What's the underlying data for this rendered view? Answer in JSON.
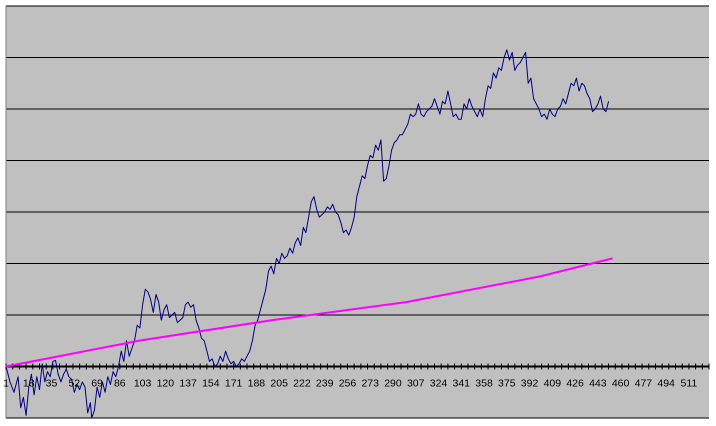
{
  "chart_data": {
    "type": "line",
    "title": "",
    "xlabel": "",
    "ylabel": "",
    "x_tick_labels": [
      "1",
      "18",
      "35",
      "52",
      "69",
      "86",
      "103",
      "120",
      "137",
      "154",
      "171",
      "188",
      "205",
      "222",
      "239",
      "256",
      "273",
      "290",
      "307",
      "324",
      "341",
      "358",
      "375",
      "392",
      "409",
      "426",
      "443",
      "460",
      "477",
      "494",
      "511"
    ],
    "xlim": [
      1,
      526
    ],
    "ylim": [
      -1,
      7
    ],
    "y_gridlines": [
      -1,
      0,
      1,
      2,
      3,
      4,
      5,
      6,
      7
    ],
    "y_tick_labels_visible": false,
    "grid": true,
    "legend": "none",
    "colors": {
      "plot_background": "#c0c0c0",
      "gridline": "#000000",
      "series_price": "#000080",
      "series_trend": "#ff00ff"
    },
    "series": [
      {
        "key": "price",
        "color": "#000080",
        "points": [
          [
            1,
            0.0
          ],
          [
            4,
            -0.3
          ],
          [
            7,
            -0.5
          ],
          [
            10,
            -0.2
          ],
          [
            12,
            -0.8
          ],
          [
            14,
            -0.6
          ],
          [
            16,
            -0.95
          ],
          [
            18,
            -0.4
          ],
          [
            20,
            -0.15
          ],
          [
            22,
            -0.55
          ],
          [
            24,
            -0.2
          ],
          [
            26,
            -0.45
          ],
          [
            28,
            0.05
          ],
          [
            30,
            -0.3
          ],
          [
            32,
            -0.1
          ],
          [
            34,
            -0.2
          ],
          [
            36,
            0.1
          ],
          [
            38,
            0.12
          ],
          [
            40,
            -0.15
          ],
          [
            42,
            -0.3
          ],
          [
            44,
            -0.15
          ],
          [
            46,
            -0.05
          ],
          [
            48,
            -0.2
          ],
          [
            50,
            -0.25
          ],
          [
            52,
            -0.5
          ],
          [
            54,
            -0.35
          ],
          [
            56,
            -0.45
          ],
          [
            58,
            -0.3
          ],
          [
            60,
            -0.4
          ],
          [
            62,
            -0.9
          ],
          [
            64,
            -0.7
          ],
          [
            65,
            -1.0
          ],
          [
            67,
            -0.85
          ],
          [
            69,
            -0.4
          ],
          [
            71,
            -0.6
          ],
          [
            73,
            -0.3
          ],
          [
            75,
            -0.5
          ],
          [
            77,
            -0.2
          ],
          [
            79,
            -0.35
          ],
          [
            81,
            -0.1
          ],
          [
            83,
            -0.2
          ],
          [
            85,
            0.0
          ],
          [
            87,
            0.3
          ],
          [
            89,
            0.1
          ],
          [
            91,
            0.5
          ],
          [
            93,
            0.2
          ],
          [
            95,
            0.35
          ],
          [
            97,
            0.5
          ],
          [
            99,
            0.8
          ],
          [
            101,
            0.75
          ],
          [
            103,
            1.2
          ],
          [
            105,
            1.5
          ],
          [
            107,
            1.45
          ],
          [
            109,
            1.3
          ],
          [
            111,
            1.05
          ],
          [
            113,
            1.4
          ],
          [
            115,
            1.25
          ],
          [
            117,
            0.9
          ],
          [
            119,
            1.1
          ],
          [
            121,
            1.2
          ],
          [
            123,
            0.95
          ],
          [
            125,
            1.0
          ],
          [
            127,
            1.05
          ],
          [
            129,
            0.85
          ],
          [
            131,
            0.9
          ],
          [
            133,
            0.95
          ],
          [
            135,
            1.2
          ],
          [
            137,
            1.25
          ],
          [
            139,
            1.15
          ],
          [
            141,
            1.2
          ],
          [
            143,
            0.9
          ],
          [
            145,
            0.75
          ],
          [
            147,
            0.55
          ],
          [
            149,
            0.5
          ],
          [
            151,
            0.3
          ],
          [
            153,
            0.1
          ],
          [
            155,
            0.15
          ],
          [
            157,
            0.0
          ],
          [
            159,
            0.05
          ],
          [
            161,
            0.2
          ],
          [
            163,
            0.1
          ],
          [
            165,
            0.3
          ],
          [
            167,
            0.15
          ],
          [
            169,
            0.05
          ],
          [
            171,
            0.1
          ],
          [
            173,
            0.0
          ],
          [
            175,
            0.05
          ],
          [
            177,
            0.15
          ],
          [
            179,
            0.1
          ],
          [
            181,
            0.2
          ],
          [
            183,
            0.3
          ],
          [
            185,
            0.5
          ],
          [
            187,
            0.8
          ],
          [
            189,
            0.9
          ],
          [
            191,
            1.1
          ],
          [
            193,
            1.3
          ],
          [
            195,
            1.5
          ],
          [
            197,
            1.85
          ],
          [
            199,
            1.95
          ],
          [
            201,
            1.8
          ],
          [
            203,
            2.1
          ],
          [
            205,
            2.0
          ],
          [
            207,
            2.2
          ],
          [
            209,
            2.1
          ],
          [
            211,
            2.15
          ],
          [
            213,
            2.3
          ],
          [
            215,
            2.2
          ],
          [
            217,
            2.4
          ],
          [
            219,
            2.5
          ],
          [
            221,
            2.35
          ],
          [
            223,
            2.7
          ],
          [
            225,
            2.6
          ],
          [
            227,
            2.9
          ],
          [
            229,
            3.2
          ],
          [
            231,
            3.3
          ],
          [
            233,
            3.05
          ],
          [
            235,
            2.9
          ],
          [
            237,
            2.95
          ],
          [
            239,
            3.0
          ],
          [
            241,
            3.1
          ],
          [
            243,
            3.05
          ],
          [
            245,
            3.15
          ],
          [
            247,
            3.0
          ],
          [
            249,
            2.95
          ],
          [
            251,
            2.8
          ],
          [
            253,
            2.6
          ],
          [
            255,
            2.65
          ],
          [
            257,
            2.55
          ],
          [
            259,
            2.7
          ],
          [
            261,
            2.9
          ],
          [
            263,
            3.3
          ],
          [
            265,
            3.5
          ],
          [
            267,
            3.7
          ],
          [
            269,
            3.65
          ],
          [
            271,
            3.9
          ],
          [
            273,
            4.1
          ],
          [
            275,
            4.05
          ],
          [
            277,
            4.3
          ],
          [
            279,
            4.2
          ],
          [
            281,
            4.4
          ],
          [
            283,
            3.6
          ],
          [
            285,
            3.65
          ],
          [
            287,
            3.9
          ],
          [
            289,
            4.2
          ],
          [
            291,
            4.35
          ],
          [
            293,
            4.4
          ],
          [
            295,
            4.5
          ],
          [
            297,
            4.5
          ],
          [
            299,
            4.6
          ],
          [
            301,
            4.7
          ],
          [
            303,
            4.9
          ],
          [
            305,
            4.85
          ],
          [
            307,
            4.9
          ],
          [
            309,
            5.1
          ],
          [
            311,
            4.9
          ],
          [
            313,
            4.85
          ],
          [
            315,
            4.95
          ],
          [
            317,
            5.0
          ],
          [
            319,
            5.05
          ],
          [
            321,
            5.2
          ],
          [
            323,
            5.05
          ],
          [
            325,
            4.9
          ],
          [
            327,
            5.15
          ],
          [
            329,
            5.1
          ],
          [
            331,
            5.35
          ],
          [
            333,
            5.1
          ],
          [
            335,
            4.85
          ],
          [
            337,
            4.9
          ],
          [
            339,
            4.8
          ],
          [
            341,
            4.8
          ],
          [
            343,
            5.1
          ],
          [
            345,
            5.0
          ],
          [
            347,
            5.2
          ],
          [
            349,
            5.05
          ],
          [
            351,
            4.95
          ],
          [
            353,
            4.85
          ],
          [
            355,
            5.0
          ],
          [
            357,
            4.85
          ],
          [
            359,
            5.2
          ],
          [
            361,
            5.45
          ],
          [
            363,
            5.4
          ],
          [
            365,
            5.7
          ],
          [
            367,
            5.6
          ],
          [
            369,
            5.8
          ],
          [
            371,
            5.75
          ],
          [
            373,
            6.0
          ],
          [
            375,
            6.15
          ],
          [
            377,
            5.95
          ],
          [
            379,
            6.1
          ],
          [
            381,
            5.75
          ],
          [
            383,
            5.85
          ],
          [
            385,
            5.9
          ],
          [
            387,
            6.0
          ],
          [
            389,
            6.1
          ],
          [
            391,
            5.5
          ],
          [
            393,
            5.6
          ],
          [
            395,
            5.2
          ],
          [
            397,
            5.1
          ],
          [
            399,
            5.0
          ],
          [
            401,
            4.85
          ],
          [
            403,
            4.9
          ],
          [
            405,
            4.8
          ],
          [
            407,
            5.0
          ],
          [
            409,
            4.9
          ],
          [
            411,
            4.85
          ],
          [
            413,
            5.0
          ],
          [
            415,
            5.05
          ],
          [
            417,
            5.2
          ],
          [
            419,
            5.1
          ],
          [
            421,
            5.3
          ],
          [
            423,
            5.5
          ],
          [
            425,
            5.45
          ],
          [
            427,
            5.6
          ],
          [
            429,
            5.35
          ],
          [
            431,
            5.5
          ],
          [
            433,
            5.45
          ],
          [
            435,
            5.3
          ],
          [
            437,
            5.2
          ],
          [
            439,
            4.95
          ],
          [
            441,
            5.0
          ],
          [
            443,
            5.1
          ],
          [
            445,
            5.25
          ],
          [
            447,
            5.0
          ],
          [
            449,
            4.95
          ],
          [
            451,
            5.15
          ]
        ]
      },
      {
        "key": "trend",
        "color": "#ff00ff",
        "points": [
          [
            1,
            0.0
          ],
          [
            100,
            0.5
          ],
          [
            200,
            0.9
          ],
          [
            300,
            1.25
          ],
          [
            400,
            1.75
          ],
          [
            454,
            2.1
          ]
        ]
      }
    ]
  }
}
